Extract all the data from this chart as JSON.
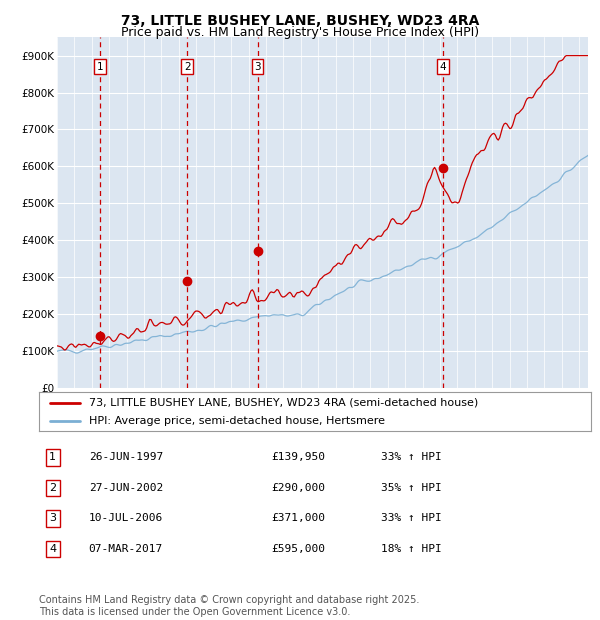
{
  "title": "73, LITTLE BUSHEY LANE, BUSHEY, WD23 4RA",
  "subtitle": "Price paid vs. HM Land Registry's House Price Index (HPI)",
  "ylim": [
    0,
    950000
  ],
  "yticks": [
    0,
    100000,
    200000,
    300000,
    400000,
    500000,
    600000,
    700000,
    800000,
    900000
  ],
  "ytick_labels": [
    "£0",
    "£100K",
    "£200K",
    "£300K",
    "£400K",
    "£500K",
    "£600K",
    "£700K",
    "£800K",
    "£900K"
  ],
  "xlim_start": 1995.0,
  "xlim_end": 2025.5,
  "plot_bg_color": "#dce6f1",
  "grid_color": "#ffffff",
  "red_line_color": "#cc0000",
  "blue_line_color": "#7bafd4",
  "sales": [
    {
      "num": 1,
      "year": 1997.48,
      "price": 139950
    },
    {
      "num": 2,
      "year": 2002.48,
      "price": 290000
    },
    {
      "num": 3,
      "year": 2006.52,
      "price": 371000
    },
    {
      "num": 4,
      "year": 2017.17,
      "price": 595000
    }
  ],
  "legend_label_red": "73, LITTLE BUSHEY LANE, BUSHEY, WD23 4RA (semi-detached house)",
  "legend_label_blue": "HPI: Average price, semi-detached house, Hertsmere",
  "table_rows": [
    {
      "num": "1",
      "date": "26-JUN-1997",
      "price": "£139,950",
      "hpi": "33% ↑ HPI"
    },
    {
      "num": "2",
      "date": "27-JUN-2002",
      "price": "£290,000",
      "hpi": "35% ↑ HPI"
    },
    {
      "num": "3",
      "date": "10-JUL-2006",
      "price": "£371,000",
      "hpi": "33% ↑ HPI"
    },
    {
      "num": "4",
      "date": "07-MAR-2017",
      "price": "£595,000",
      "hpi": "18% ↑ HPI"
    }
  ],
  "footer": "Contains HM Land Registry data © Crown copyright and database right 2025.\nThis data is licensed under the Open Government Licence v3.0.",
  "title_fontsize": 10,
  "subtitle_fontsize": 9,
  "tick_fontsize": 7.5,
  "legend_fontsize": 8,
  "table_fontsize": 8,
  "footer_fontsize": 7
}
